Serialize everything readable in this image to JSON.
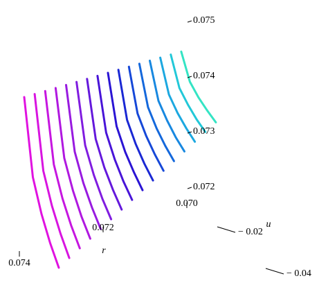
{
  "chart_data": {
    "type": "line3d",
    "r_label": "r",
    "u_label": "u",
    "rlim": [
      0.074,
      0.07
    ],
    "ulim": [
      0,
      -0.04
    ],
    "zlim": [
      0.0715,
      0.0755
    ],
    "rticks": [
      0.074,
      0.072,
      {
        "value": 0.07,
        "label": "0.070"
      }
    ],
    "uticks": [
      {
        "value": -0.02,
        "label": "− 0.02"
      },
      {
        "value": -0.04,
        "label": "− 0.04"
      }
    ],
    "zticks": [
      0.075,
      0.074,
      0.073,
      0.072
    ],
    "u": [
      0,
      -0.01,
      -0.02,
      -0.03,
      -0.04
    ],
    "series": [
      {
        "color": "#e012e0",
        "r": 0.074,
        "values": [
          0.0745,
          0.07315,
          0.07258,
          0.07215,
          0.0718
        ]
      },
      {
        "color": "#d814e0",
        "r": 0.07375,
        "values": [
          0.0745,
          0.07321,
          0.07267,
          0.07226,
          0.07192
        ]
      },
      {
        "color": "#c616e0",
        "r": 0.0735,
        "values": [
          0.0745,
          0.07327,
          0.07275,
          0.07236,
          0.07204
        ]
      },
      {
        "color": "#b018e0",
        "r": 0.07325,
        "values": [
          0.0745,
          0.07333,
          0.07284,
          0.07246,
          0.07216
        ]
      },
      {
        "color": "#981ae0",
        "r": 0.073,
        "values": [
          0.0745,
          0.07339,
          0.07292,
          0.07257,
          0.07228
        ]
      },
      {
        "color": "#801ce0",
        "r": 0.07275,
        "values": [
          0.0745,
          0.07345,
          0.07301,
          0.07267,
          0.0724
        ]
      },
      {
        "color": "#6418dc",
        "r": 0.0725,
        "values": [
          0.0745,
          0.07351,
          0.07309,
          0.07278,
          0.07252
        ]
      },
      {
        "color": "#4814d8",
        "r": 0.07225,
        "values": [
          0.0745,
          0.07357,
          0.07318,
          0.07288,
          0.07264
        ]
      },
      {
        "color": "#2a14d4",
        "r": 0.072,
        "values": [
          0.0745,
          0.07363,
          0.07326,
          0.07299,
          0.07276
        ]
      },
      {
        "color": "#1a28d4",
        "r": 0.07175,
        "values": [
          0.0745,
          0.07369,
          0.07335,
          0.07309,
          0.07288
        ]
      },
      {
        "color": "#1648d8",
        "r": 0.0715,
        "values": [
          0.0745,
          0.07375,
          0.07344,
          0.0732,
          0.073
        ]
      },
      {
        "color": "#1468dc",
        "r": 0.07125,
        "values": [
          0.0745,
          0.07381,
          0.07352,
          0.0733,
          0.07312
        ]
      },
      {
        "color": "#1888e0",
        "r": 0.071,
        "values": [
          0.0745,
          0.07387,
          0.07361,
          0.0734,
          0.07324
        ]
      },
      {
        "color": "#1ca8e0",
        "r": 0.07075,
        "values": [
          0.0745,
          0.07393,
          0.07369,
          0.07351,
          0.07336
        ]
      },
      {
        "color": "#22c8d8",
        "r": 0.0705,
        "values": [
          0.0745,
          0.07399,
          0.07378,
          0.07361,
          0.07348
        ]
      },
      {
        "color": "#34e4c4",
        "r": 0.07025,
        "values": [
          0.0745,
          0.07405,
          0.07386,
          0.07372,
          0.0736
        ]
      }
    ]
  }
}
